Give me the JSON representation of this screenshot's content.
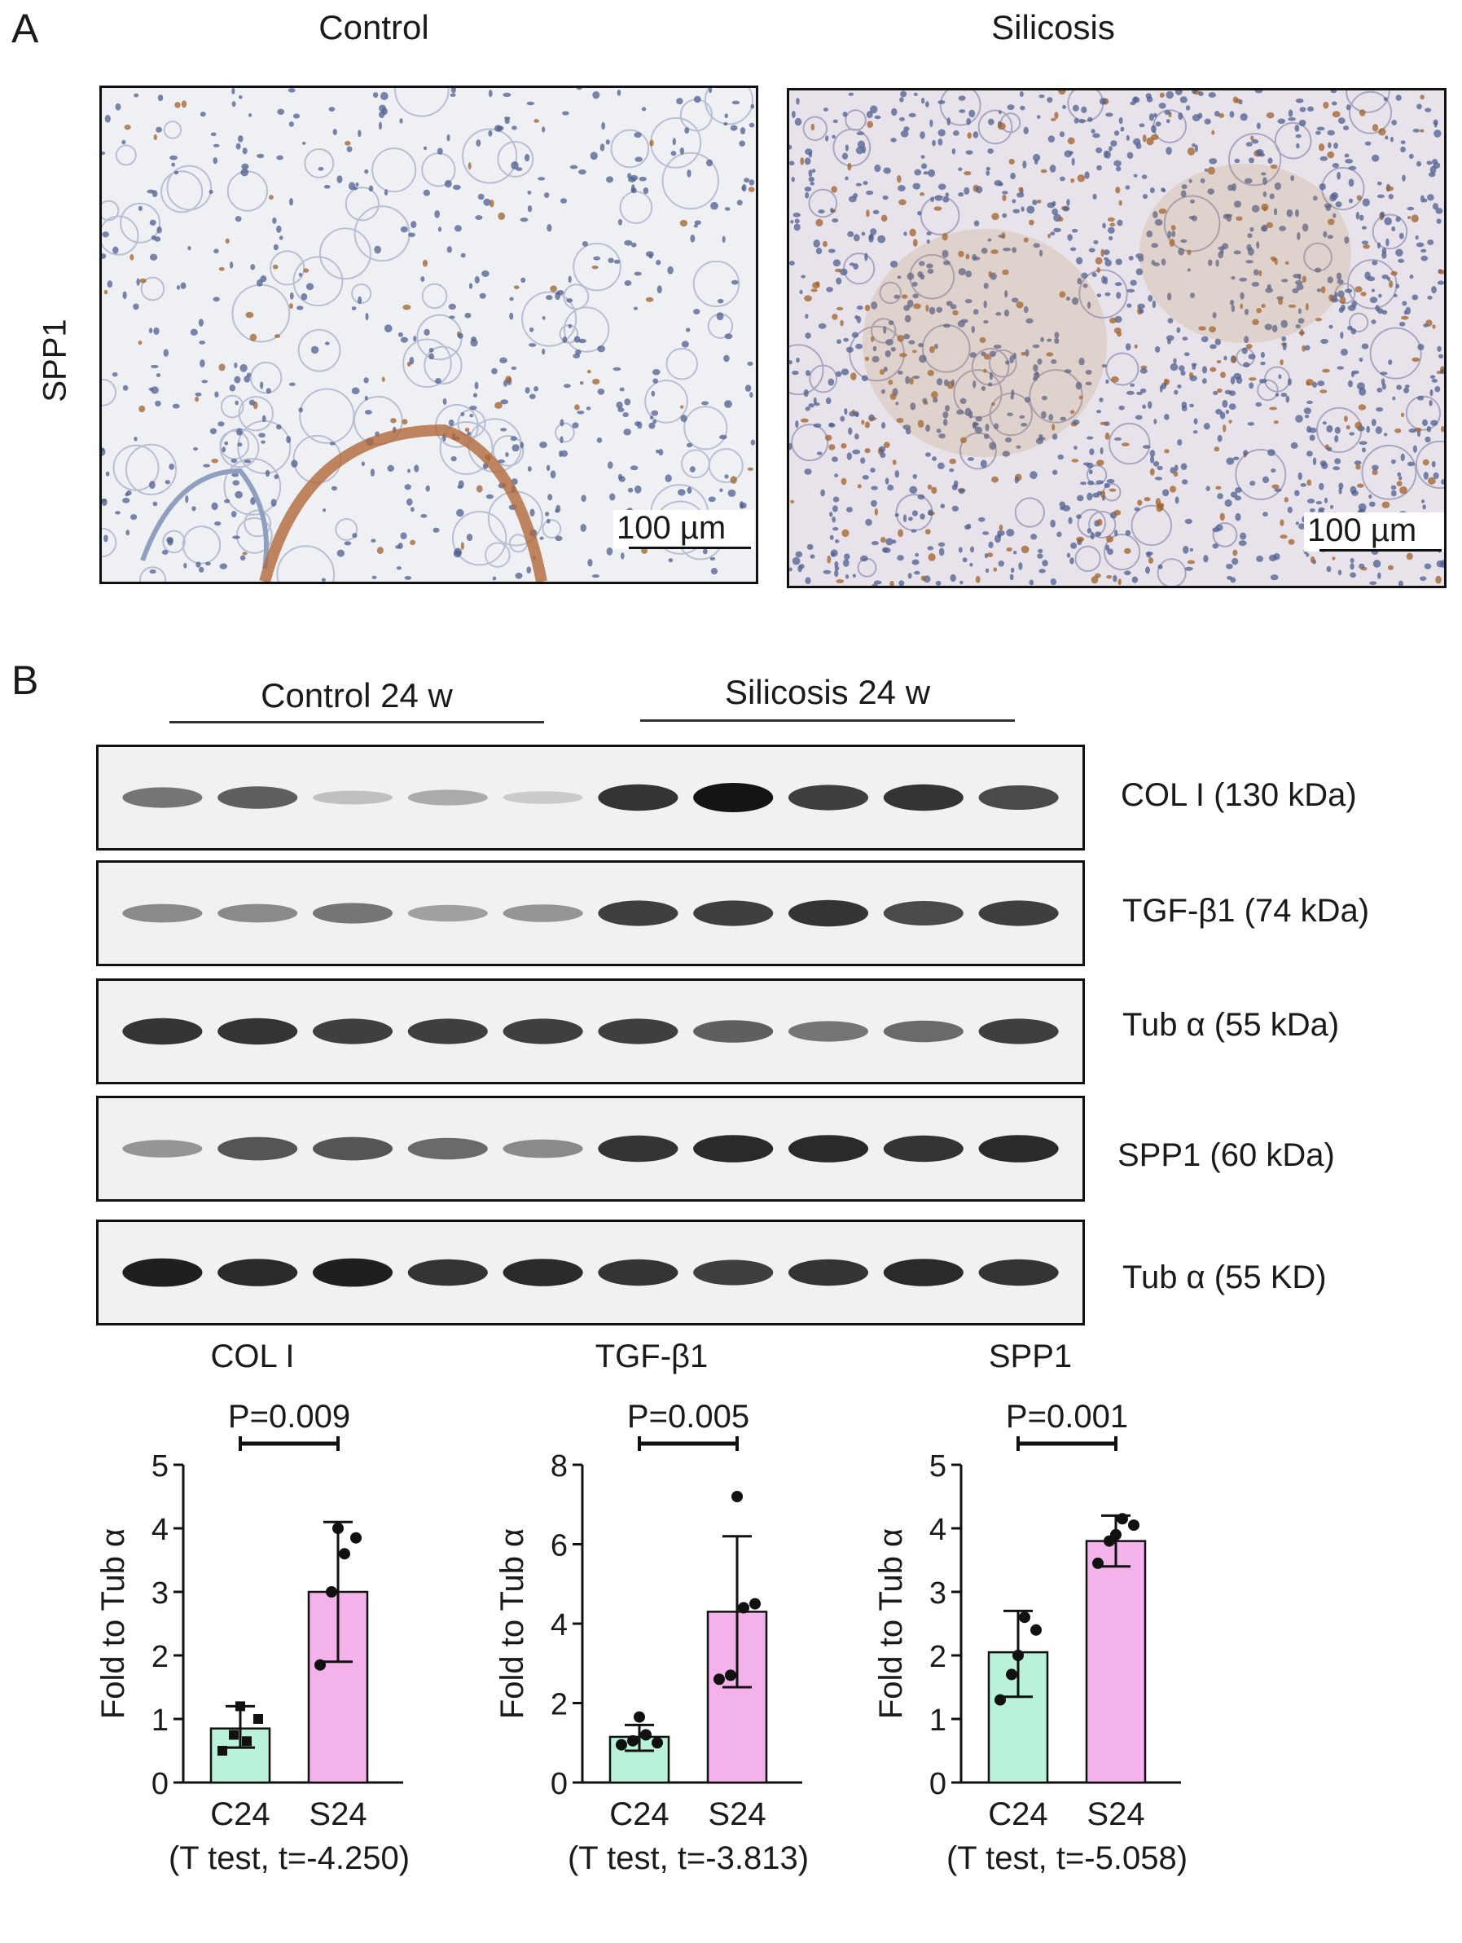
{
  "panel_a": {
    "letter": "A",
    "columns": [
      "Control",
      "Silicosis"
    ],
    "row_label": "SPP1",
    "scale_label": "100 µm"
  },
  "panel_b": {
    "letter": "B",
    "groups": [
      "Control 24 w",
      "Silicosis 24 w"
    ],
    "blots": [
      {
        "label": "COL I (130 kDa)",
        "intensities": [
          0.55,
          0.65,
          0.2,
          0.3,
          0.15,
          0.85,
          1.0,
          0.8,
          0.85,
          0.75
        ]
      },
      {
        "label": "TGF-β1 (74 kDa)",
        "intensities": [
          0.45,
          0.45,
          0.55,
          0.35,
          0.4,
          0.8,
          0.8,
          0.85,
          0.75,
          0.8
        ]
      },
      {
        "label": "Tub α (55 kDa)",
        "intensities": [
          0.85,
          0.85,
          0.8,
          0.8,
          0.8,
          0.8,
          0.65,
          0.55,
          0.6,
          0.8
        ]
      },
      {
        "label": "SPP1 (60 kDa)",
        "intensities": [
          0.4,
          0.7,
          0.7,
          0.6,
          0.45,
          0.85,
          0.9,
          0.9,
          0.85,
          0.9
        ]
      },
      {
        "label": "Tub α (55 KD)",
        "intensities": [
          0.95,
          0.9,
          0.95,
          0.85,
          0.9,
          0.85,
          0.8,
          0.85,
          0.9,
          0.85
        ]
      }
    ]
  },
  "colors": {
    "c24": "#b9f1d9",
    "s24": "#f3b2ea"
  },
  "chart_data": [
    {
      "type": "bar",
      "title": "COL I",
      "ylabel": "Fold to Tub α",
      "categories": [
        "C24",
        "S24"
      ],
      "values": [
        0.85,
        3.0
      ],
      "error": [
        [
          0.55,
          1.2
        ],
        [
          1.9,
          4.1
        ]
      ],
      "points": [
        [
          0.5,
          0.75,
          0.65,
          1.0,
          1.2
        ],
        [
          1.85,
          3.0,
          3.6,
          3.85,
          4.0
        ]
      ],
      "ylim": [
        0,
        5
      ],
      "yticks": [
        "0",
        "1",
        "2",
        "3",
        "4",
        "5"
      ],
      "pvalue": "P=0.009",
      "test": "(T test, t=-4.250)"
    },
    {
      "type": "bar",
      "title": "TGF-β1",
      "ylabel": "Fold to Tub α",
      "categories": [
        "C24",
        "S24"
      ],
      "values": [
        1.15,
        4.3
      ],
      "error": [
        [
          0.8,
          1.45
        ],
        [
          2.4,
          6.2
        ]
      ],
      "points": [
        [
          0.95,
          1.05,
          1.2,
          1.0,
          1.65
        ],
        [
          2.6,
          2.7,
          4.4,
          4.5,
          7.2
        ]
      ],
      "ylim": [
        0,
        8
      ],
      "yticks": [
        "0",
        "2",
        "4",
        "6",
        "8"
      ],
      "pvalue": "P=0.005",
      "test": "(T test, t=-3.813)"
    },
    {
      "type": "bar",
      "title": "SPP1",
      "ylabel": "Fold to Tub α",
      "categories": [
        "C24",
        "S24"
      ],
      "values": [
        2.05,
        3.8
      ],
      "error": [
        [
          1.35,
          2.7
        ],
        [
          3.4,
          4.2
        ]
      ],
      "points": [
        [
          1.3,
          1.7,
          2.6,
          2.4,
          2.0
        ],
        [
          3.45,
          3.8,
          4.15,
          4.05,
          3.9
        ]
      ],
      "ylim": [
        0,
        5
      ],
      "yticks": [
        "0",
        "1",
        "2",
        "3",
        "4",
        "5"
      ],
      "pvalue": "P=0.001",
      "test": "(T test, t=-5.058)"
    }
  ]
}
